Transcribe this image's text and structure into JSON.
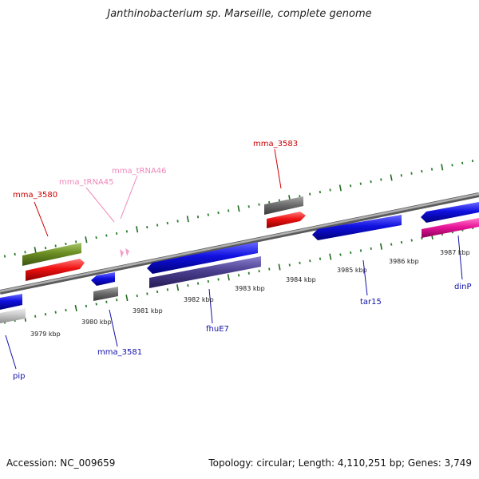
{
  "title": "Janthinobacterium sp. Marseille, complete genome",
  "footer": {
    "accession": "Accession: NC_009659",
    "summary": "Topology: circular; Length: 4,110,251 bp; Genes: 3,749"
  },
  "colors": {
    "backbone": "#8a8a8a",
    "tick_minor": "#2a7d2a",
    "tick_major": "#1f6b1f",
    "cds": "#1010e0",
    "trna": "#f2a0c8",
    "olive": "#6b8e23",
    "red": "#ee1111",
    "gray": "#6e6e6e",
    "lightgray": "#c8c8c8",
    "purple": "#4b3f8f",
    "magenta": "#e8159a"
  },
  "scale_labels": [
    "3979 kbp",
    "3980 kbp",
    "3981 kbp",
    "3982 kbp",
    "3983 kbp",
    "3984 kbp",
    "3985 kbp",
    "3986 kbp",
    "3987 kbp"
  ],
  "gene_labels": [
    {
      "name": "mma_3580",
      "color": "#cc0000",
      "id": "mma-3580"
    },
    {
      "name": "mma_tRNA45",
      "color": "#ee88bb",
      "id": "mma-trna45"
    },
    {
      "name": "mma_tRNA46",
      "color": "#ee88bb",
      "id": "mma-trna46"
    },
    {
      "name": "mma_3583",
      "color": "#cc0000",
      "id": "mma-3583"
    },
    {
      "name": "mma_3581",
      "color": "#1010aa",
      "id": "mma-3581"
    },
    {
      "name": "fhuE7",
      "color": "#1010aa",
      "id": "fhue7"
    },
    {
      "name": "tar15",
      "color": "#1010aa",
      "id": "tar15"
    },
    {
      "name": "dinP",
      "color": "#1010aa",
      "id": "dinp"
    },
    {
      "name": "pip",
      "color": "#1010aa",
      "id": "pip"
    }
  ]
}
